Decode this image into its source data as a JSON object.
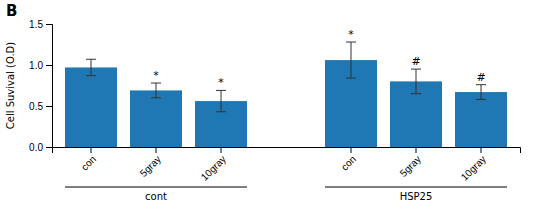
{
  "chart_data": {
    "type": "bar",
    "title": "B",
    "categories": [
      "con",
      "5gray",
      "10gray",
      "con",
      "5gray",
      "10gray"
    ],
    "groups": [
      "cont",
      "cont",
      "cont",
      "HSP25",
      "HSP25",
      "HSP25"
    ],
    "values": [
      0.97,
      0.69,
      0.56,
      1.06,
      0.8,
      0.67
    ],
    "errors": [
      0.1,
      0.09,
      0.13,
      0.22,
      0.15,
      0.09
    ],
    "annotations": [
      null,
      "*",
      "*",
      "*",
      "#",
      "#"
    ],
    "ylabel": "Cell Suvival (O.D)",
    "ylim": [
      0.0,
      1.5
    ],
    "yticks": [
      {
        "value": 0.0,
        "label": "0.0"
      },
      0.5,
      {
        "value": 1.0,
        "label": "1.0"
      },
      1.5
    ],
    "grid": false
  }
}
